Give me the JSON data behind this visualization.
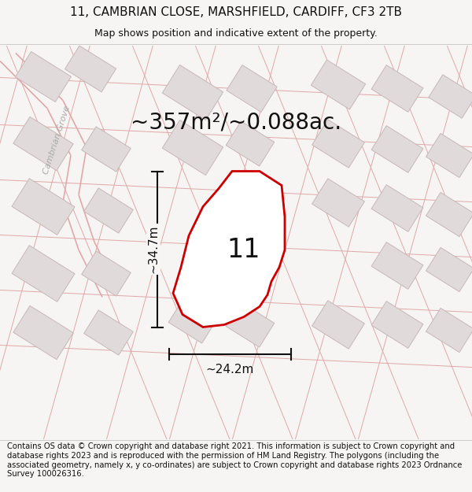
{
  "title": "11, CAMBRIAN CLOSE, MARSHFIELD, CARDIFF, CF3 2TB",
  "subtitle": "Map shows position and indicative extent of the property.",
  "area_text": "~357m²/~0.088ac.",
  "dim_horizontal": "~24.2m",
  "dim_vertical": "~34.7m",
  "plot_number": "11",
  "footer": "Contains OS data © Crown copyright and database right 2021. This information is subject to Crown copyright and database rights 2023 and is reproduced with the permission of HM Land Registry. The polygons (including the associated geometry, namely x, y co-ordinates) are subject to Crown copyright and database rights 2023 Ordnance Survey 100026316.",
  "bg_color": "#f7f4f4",
  "map_bg": "#f8f5f5",
  "road_color": "#e8b8b8",
  "building_fill": "#e0dada",
  "building_edge": "#c8b8b8",
  "plot_outline_color": "#cc0000",
  "plot_fill_color": "#ffffff",
  "dim_line_color": "#111111",
  "road_line_color": "#e0a8a8",
  "title_fontsize": 11,
  "subtitle_fontsize": 9,
  "area_fontsize": 20,
  "plot_number_fontsize": 24,
  "dim_fontsize": 11,
  "footer_fontsize": 7.2,
  "street_label_color": "#aaaaaa",
  "street_label_fontsize": 8
}
